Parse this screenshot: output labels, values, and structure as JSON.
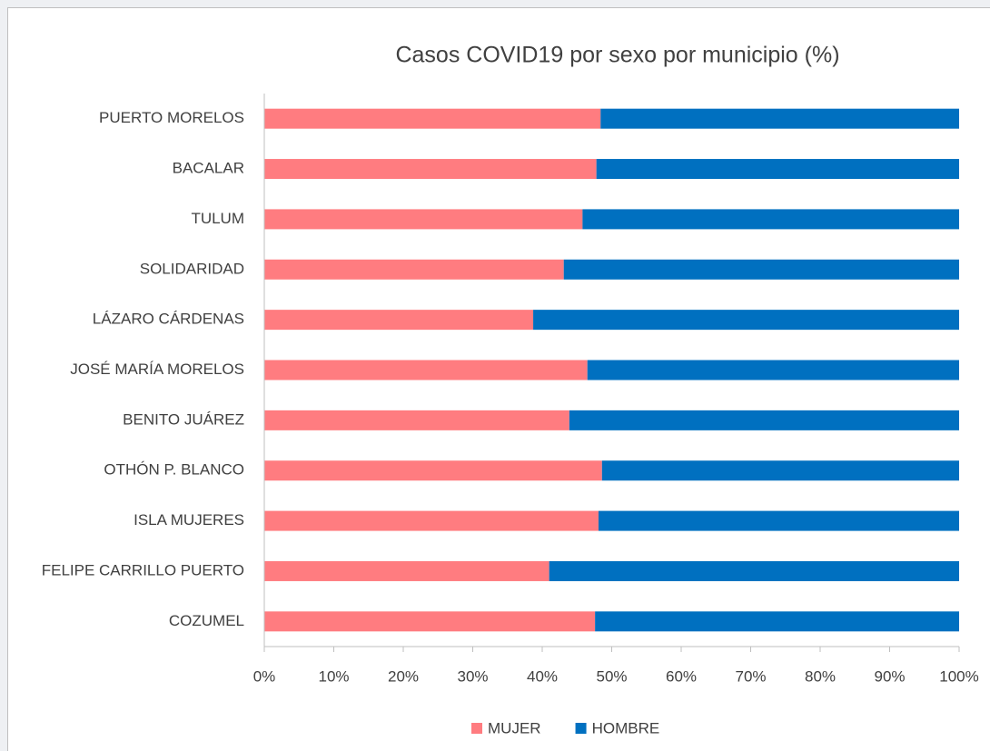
{
  "chart_data": {
    "type": "stacked-bar-horizontal",
    "title": "Casos COVID19 por sexo por municipio (%)",
    "categories": [
      "PUERTO MORELOS",
      "BACALAR",
      "TULUM",
      "SOLIDARIDAD",
      "LÁZARO CÁRDENAS",
      "JOSÉ MARÍA MORELOS",
      "BENITO JUÁREZ",
      "OTHÓN P. BLANCO",
      "ISLA MUJERES",
      "FELIPE CARRILLO PUERTO",
      "COZUMEL"
    ],
    "series": [
      {
        "name": "MUJER",
        "color": "#ff7c80",
        "values": [
          48.4,
          47.8,
          45.8,
          43.1,
          38.7,
          46.5,
          43.9,
          48.6,
          48.1,
          41.0,
          47.6
        ]
      },
      {
        "name": "HOMBRE",
        "color": "#0070c0",
        "values": [
          51.6,
          52.2,
          54.2,
          56.9,
          61.3,
          53.5,
          56.1,
          51.4,
          51.9,
          59.0,
          52.4
        ]
      }
    ],
    "xlim": [
      0,
      100
    ],
    "xticks": [
      {
        "value": 0,
        "label": "0%"
      },
      {
        "value": 10,
        "label": "10%"
      },
      {
        "value": 20,
        "label": "20%"
      },
      {
        "value": 30,
        "label": "30%"
      },
      {
        "value": 40,
        "label": "40%"
      },
      {
        "value": 50,
        "label": "50%"
      },
      {
        "value": 60,
        "label": "60%"
      },
      {
        "value": 70,
        "label": "70%"
      },
      {
        "value": 80,
        "label": "80%"
      },
      {
        "value": 90,
        "label": "90%"
      },
      {
        "value": 100,
        "label": "100%"
      }
    ],
    "legend": "bottom"
  }
}
